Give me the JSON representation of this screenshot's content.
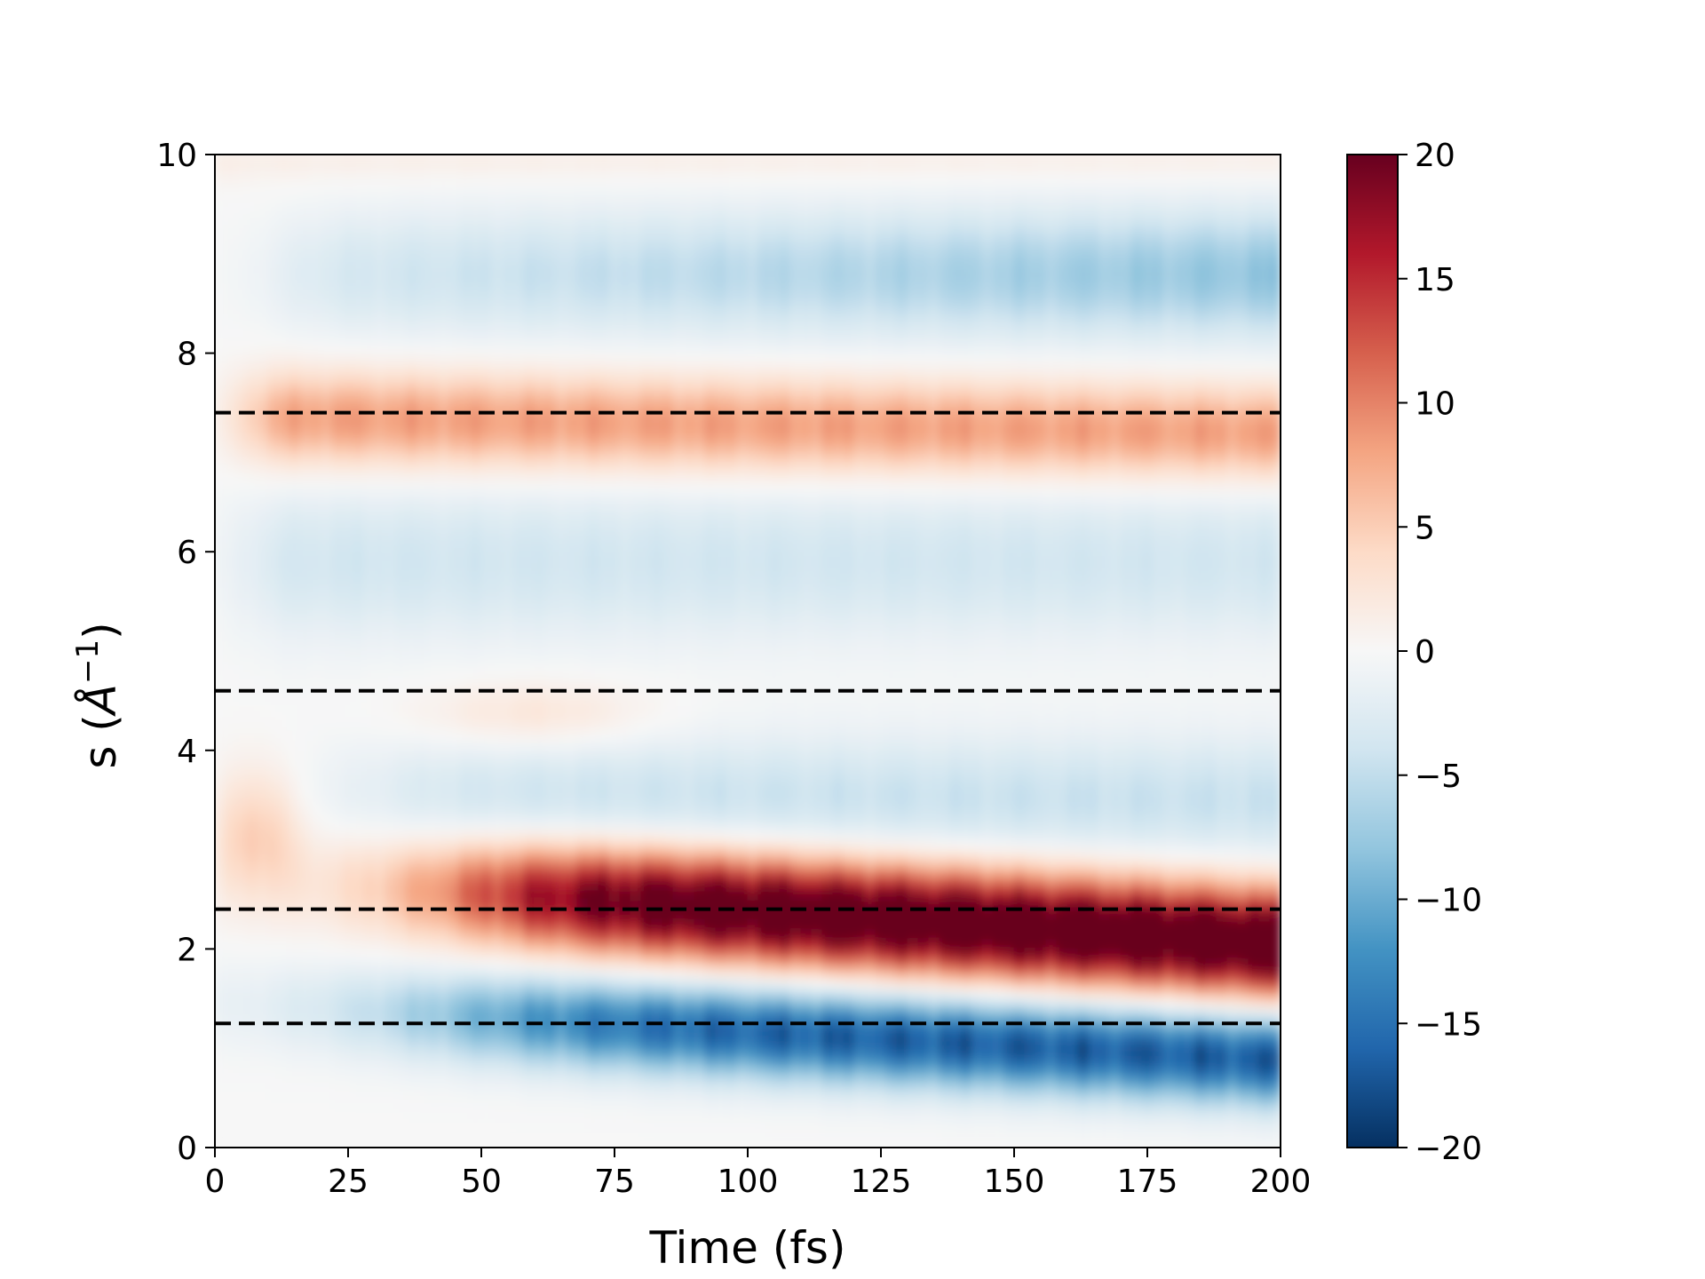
{
  "chart_data": {
    "type": "heatmap",
    "title": "",
    "xlabel": "Time (fs)",
    "ylabel": "s (Å⁻¹)",
    "ylabel_main": "s (",
    "ylabel_unit": "Å",
    "ylabel_exp": "−1",
    "ylabel_close": ")",
    "xlim": [
      0,
      200
    ],
    "ylim": [
      0,
      10
    ],
    "x_ticks": [
      0,
      25,
      50,
      75,
      100,
      125,
      150,
      175,
      200
    ],
    "x_tick_labels": [
      "0",
      "25",
      "50",
      "75",
      "100",
      "125",
      "150",
      "175",
      "200"
    ],
    "y_ticks": [
      0,
      2,
      4,
      6,
      8,
      10
    ],
    "y_tick_labels": [
      "0",
      "2",
      "4",
      "6",
      "8",
      "10"
    ],
    "colorbar": {
      "colormap": "RdBu_r",
      "range": [
        -20,
        20
      ],
      "ticks": [
        20,
        15,
        10,
        5,
        0,
        -5,
        -10,
        -15,
        -20
      ],
      "tick_labels": [
        "20",
        "15",
        "10",
        "5",
        "0",
        "−5",
        "−10",
        "−15",
        "−20"
      ]
    },
    "reference_lines": [
      {
        "s": 7.4,
        "style": "dashed",
        "color": "#000000"
      },
      {
        "s": 4.6,
        "style": "dashed",
        "color": "#000000"
      },
      {
        "s": 2.4,
        "style": "dashed",
        "color": "#000000"
      },
      {
        "s": 1.25,
        "style": "dashed",
        "color": "#000000"
      }
    ],
    "features": [
      {
        "kind": "negative",
        "s_center": 0.95,
        "s_width": 0.35,
        "t_onset": 20,
        "peak_value": -16
      },
      {
        "kind": "positive",
        "s_center": 2.1,
        "s_width": 0.45,
        "t_onset": 20,
        "peak_value": 20
      },
      {
        "kind": "negative",
        "s_center": 3.5,
        "s_width": 0.5,
        "t_onset": 30,
        "peak_value": -5
      },
      {
        "kind": "positive",
        "s_center": 4.3,
        "s_width": 0.35,
        "t_onset": 45,
        "peak_value": 3
      },
      {
        "kind": "negative",
        "s_center": 5.9,
        "s_width": 0.7,
        "t_onset": 5,
        "peak_value": -4
      },
      {
        "kind": "positive",
        "s_center": 7.3,
        "s_width": 0.4,
        "t_onset": 5,
        "peak_value": 8
      },
      {
        "kind": "negative",
        "s_center": 8.8,
        "s_width": 0.5,
        "t_onset": 10,
        "peak_value": -7
      }
    ],
    "colors": {
      "dashed_line": "#000000",
      "axes": "#000000"
    }
  }
}
